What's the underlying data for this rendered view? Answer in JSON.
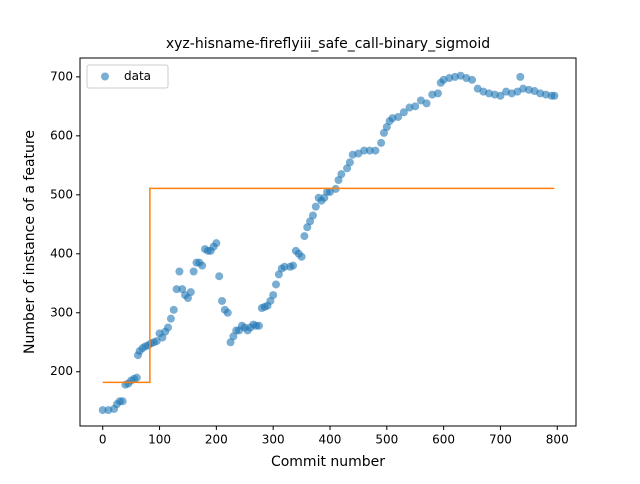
{
  "chart_data": {
    "type": "scatter",
    "title": "xyz-hisname-fireflyiii_safe_call-binary_sigmoid",
    "xlabel": "Commit number",
    "ylabel": "Number of instance of a feature",
    "xlim": [
      -40,
      833
    ],
    "ylim": [
      108,
      732
    ],
    "xticks": [
      0,
      100,
      200,
      300,
      400,
      500,
      600,
      700,
      800
    ],
    "yticks": [
      200,
      300,
      400,
      500,
      600,
      700
    ],
    "legend": "upper left",
    "series": [
      {
        "name": "data",
        "color": "#1f77b4",
        "x": [
          0,
          10,
          20,
          25,
          30,
          35,
          40,
          45,
          50,
          55,
          60,
          62,
          65,
          70,
          75,
          80,
          85,
          90,
          95,
          100,
          105,
          110,
          115,
          120,
          125,
          130,
          135,
          140,
          145,
          150,
          155,
          160,
          165,
          170,
          175,
          180,
          185,
          190,
          195,
          200,
          205,
          210,
          215,
          220,
          225,
          230,
          235,
          240,
          245,
          250,
          255,
          260,
          265,
          270,
          275,
          280,
          285,
          290,
          295,
          300,
          305,
          310,
          315,
          320,
          330,
          335,
          340,
          345,
          350,
          355,
          360,
          365,
          370,
          375,
          380,
          385,
          390,
          395,
          400,
          410,
          415,
          420,
          430,
          435,
          440,
          450,
          460,
          470,
          480,
          490,
          495,
          500,
          505,
          510,
          520,
          530,
          540,
          550,
          560,
          570,
          580,
          590,
          595,
          600,
          610,
          620,
          630,
          640,
          650,
          660,
          670,
          680,
          690,
          700,
          710,
          720,
          730,
          735,
          740,
          750,
          760,
          770,
          780,
          790,
          795
        ],
        "values": [
          135,
          135,
          137,
          145,
          150,
          150,
          178,
          180,
          185,
          188,
          190,
          228,
          235,
          240,
          243,
          245,
          248,
          250,
          252,
          265,
          258,
          268,
          275,
          290,
          305,
          340,
          370,
          340,
          330,
          325,
          335,
          370,
          385,
          385,
          380,
          408,
          405,
          405,
          412,
          418,
          362,
          320,
          305,
          300,
          250,
          260,
          270,
          270,
          278,
          275,
          270,
          275,
          280,
          278,
          278,
          308,
          310,
          312,
          320,
          330,
          348,
          365,
          375,
          378,
          378,
          380,
          405,
          400,
          395,
          430,
          445,
          455,
          465,
          480,
          495,
          490,
          495,
          505,
          505,
          510,
          525,
          535,
          545,
          555,
          568,
          570,
          575,
          575,
          575,
          588,
          605,
          615,
          625,
          630,
          632,
          640,
          648,
          650,
          660,
          655,
          670,
          672,
          690,
          695,
          698,
          700,
          702,
          698,
          695,
          680,
          675,
          672,
          670,
          668,
          675,
          672,
          675,
          700,
          680,
          678,
          676,
          672,
          670,
          668,
          668
        ]
      }
    ],
    "step": {
      "color": "#ff7f0e",
      "x": [
        0,
        83,
        83,
        795
      ],
      "values": [
        182,
        182,
        511,
        511
      ]
    }
  }
}
